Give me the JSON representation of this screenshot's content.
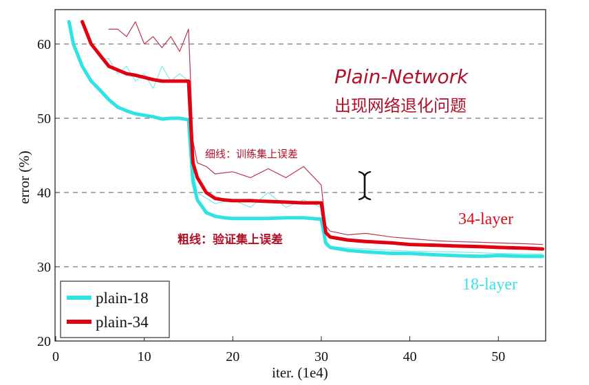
{
  "chart_data": {
    "type": "line",
    "title": "",
    "xlabel": "iter. (1e4)",
    "ylabel": "error (%)",
    "xlim": [
      0,
      55
    ],
    "ylim": [
      20,
      62
    ],
    "x_ticks": [
      "0",
      "10",
      "20",
      "30",
      "40",
      "50"
    ],
    "y_ticks": [
      "20",
      "30",
      "40",
      "50",
      "60"
    ],
    "grid": "horizontal dashed",
    "legend_placement": "bottom-left",
    "legend": [
      "plain-18",
      "plain-34"
    ],
    "series": [
      {
        "name": "plain-18",
        "kind": "validation (thick)",
        "color": "#2fe3e3",
        "x": [
          1.5,
          2,
          3,
          4,
          5,
          6,
          7,
          8,
          9,
          10,
          11,
          12,
          13,
          14,
          15,
          15.5,
          16,
          17,
          18,
          19,
          20,
          22,
          24,
          26,
          28,
          30,
          30.5,
          31,
          33,
          35,
          38,
          40,
          43,
          45,
          48,
          50,
          53,
          55
        ],
        "y": [
          63,
          60,
          57,
          55,
          53.8,
          52.5,
          51.5,
          51,
          50.6,
          50.4,
          50.2,
          49.9,
          50,
          50,
          49.8,
          41.5,
          39,
          37.3,
          36.8,
          36.6,
          36.5,
          36.5,
          36.5,
          36.6,
          36.6,
          36.4,
          33.2,
          32.6,
          32.2,
          32,
          31.8,
          31.8,
          31.6,
          31.5,
          31.4,
          31.5,
          31.4,
          31.4
        ]
      },
      {
        "name": "plain-34",
        "kind": "validation (thick)",
        "color": "#e00010",
        "x": [
          3,
          4,
          5,
          6,
          7,
          8,
          9,
          10,
          11,
          12,
          13,
          14,
          15,
          15.5,
          16,
          17,
          18,
          19,
          20,
          22,
          24,
          26,
          28,
          30,
          30.5,
          31,
          33,
          35,
          38,
          40,
          43,
          45,
          48,
          50,
          53,
          55
        ],
        "y": [
          63,
          60,
          58.5,
          57,
          56.5,
          56,
          55.8,
          55.5,
          55.2,
          55,
          55,
          55,
          55,
          44,
          42,
          40,
          39.2,
          39,
          38.9,
          38.9,
          38.8,
          38.7,
          38.6,
          38.6,
          34.6,
          34,
          33.6,
          33.4,
          33.2,
          33,
          32.9,
          32.8,
          32.7,
          32.6,
          32.5,
          32.4
        ]
      },
      {
        "name": "plain-18",
        "kind": "training (thin)",
        "color": "#7fe8e8",
        "x": [
          5,
          6,
          7,
          8,
          9,
          10,
          11,
          12,
          13,
          14,
          15,
          15.5,
          16,
          18,
          20,
          22,
          24,
          26,
          28,
          30,
          30.5,
          31,
          35,
          40,
          45,
          50,
          55
        ],
        "y": [
          58,
          58,
          56,
          57,
          55,
          56,
          54,
          57,
          55,
          56,
          55,
          43,
          40,
          38.5,
          39,
          38,
          40,
          38,
          39,
          38,
          33,
          32.7,
          32.4,
          32.1,
          32,
          31.8,
          31.7
        ]
      },
      {
        "name": "plain-34",
        "kind": "training (thin)",
        "color": "#b83848",
        "x": [
          6,
          7,
          8,
          9,
          10,
          11,
          12,
          13,
          14,
          15,
          15.5,
          16,
          17,
          18,
          20,
          22,
          24,
          26,
          28,
          30,
          30.5,
          31,
          33,
          35,
          38,
          40,
          43,
          45,
          48,
          50,
          53,
          55
        ],
        "y": [
          62,
          62,
          61,
          63,
          60,
          61,
          59.5,
          61,
          59,
          62,
          47,
          44,
          43.5,
          42.5,
          42.8,
          42,
          43.2,
          42,
          43.5,
          41,
          35.5,
          34.8,
          34.3,
          34.5,
          34,
          33.8,
          33.5,
          33.4,
          33.3,
          33.2,
          33.1,
          33
        ]
      }
    ],
    "annotations": {
      "series_labels": [
        "34-layer",
        "18-layer"
      ],
      "handwritten_title": "Plain-Network",
      "handwritten_subtitle": "出现网络退化问题",
      "thin_note": "细线：训练集上误差",
      "thick_note": "粗线：验证集上误差"
    }
  }
}
